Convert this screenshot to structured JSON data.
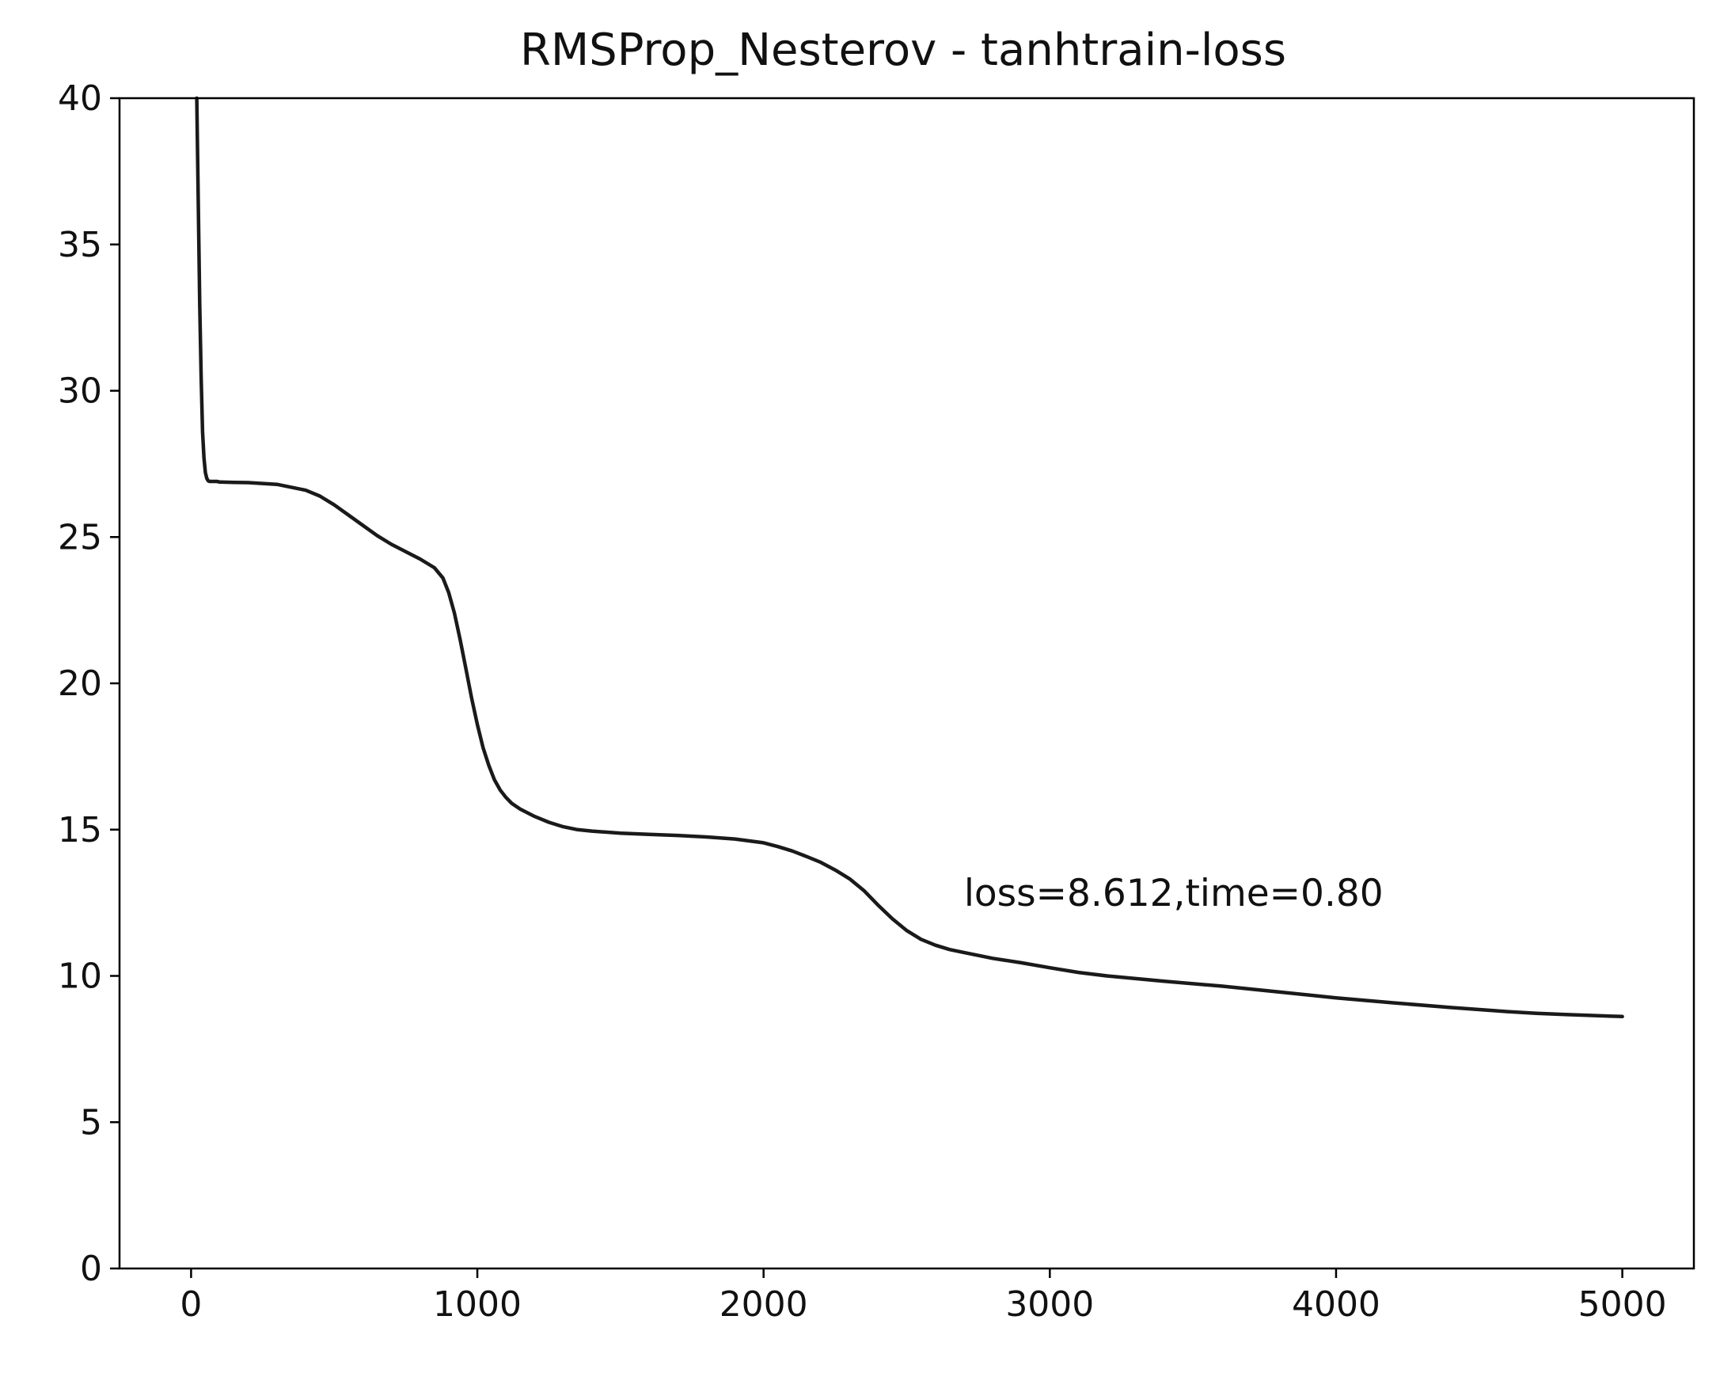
{
  "chart_data": {
    "type": "line",
    "title": "RMSProp_Nesterov - tanhtrain-loss",
    "xlabel": "",
    "ylabel": "",
    "xlim": [
      -250,
      5250
    ],
    "ylim": [
      0,
      40
    ],
    "xticks": [
      0,
      1000,
      2000,
      3000,
      4000,
      5000
    ],
    "yticks": [
      0,
      5,
      10,
      15,
      20,
      25,
      30,
      35,
      40
    ],
    "grid": false,
    "legend": "none",
    "line_color": "#1a1a1a",
    "annotation": {
      "text": "loss=8.612,time=0.80",
      "x": 2700,
      "y": 12.4
    },
    "series": [
      {
        "x": [
          20,
          30,
          35,
          40,
          45,
          50,
          55,
          60,
          65,
          70,
          75,
          80,
          90,
          100,
          150,
          200,
          300,
          400,
          450,
          500,
          550,
          600,
          650,
          700,
          750,
          800,
          850,
          880,
          900,
          920,
          940,
          960,
          980,
          1000,
          1020,
          1040,
          1060,
          1080,
          1100,
          1120,
          1150,
          1200,
          1250,
          1300,
          1350,
          1400,
          1500,
          1600,
          1700,
          1800,
          1900,
          2000,
          2050,
          2100,
          2150,
          2200,
          2250,
          2300,
          2350,
          2400,
          2450,
          2500,
          2550,
          2600,
          2650,
          2700,
          2800,
          2900,
          3000,
          3100,
          3200,
          3400,
          3600,
          3800,
          4000,
          4200,
          4400,
          4600,
          4700,
          4800,
          5000
        ],
        "values": [
          40,
          33.0,
          30.5,
          28.6,
          27.7,
          27.2,
          27.0,
          26.92,
          26.9,
          26.9,
          26.9,
          26.9,
          26.9,
          26.88,
          26.87,
          26.86,
          26.8,
          26.6,
          26.4,
          26.1,
          25.75,
          25.4,
          25.05,
          24.75,
          24.5,
          24.25,
          23.95,
          23.6,
          23.1,
          22.4,
          21.5,
          20.5,
          19.5,
          18.6,
          17.8,
          17.2,
          16.7,
          16.35,
          16.1,
          15.9,
          15.7,
          15.45,
          15.25,
          15.1,
          15.0,
          14.95,
          14.88,
          14.84,
          14.8,
          14.75,
          14.68,
          14.55,
          14.42,
          14.27,
          14.08,
          13.88,
          13.62,
          13.32,
          12.92,
          12.42,
          11.95,
          11.55,
          11.25,
          11.05,
          10.9,
          10.8,
          10.6,
          10.45,
          10.28,
          10.12,
          10.0,
          9.82,
          9.65,
          9.45,
          9.25,
          9.08,
          8.92,
          8.78,
          8.72,
          8.68,
          8.612
        ]
      }
    ]
  }
}
